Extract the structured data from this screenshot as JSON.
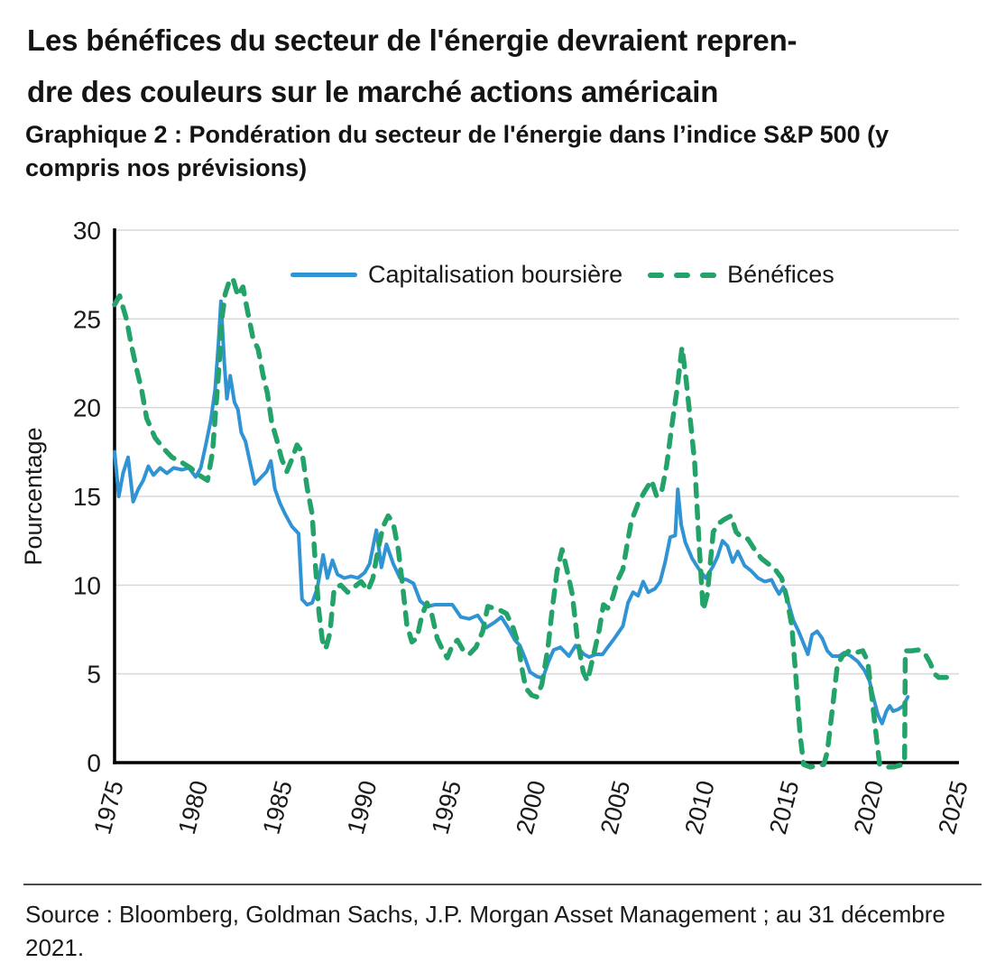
{
  "header": {
    "title_line1": "Les bénéfices du secteur de l'énergie devraient repren-",
    "title_line2": "dre des couleurs sur le marché actions américain",
    "subtitle": "Graphique 2 : Pondération du secteur de l'énergie dans l’indice S&P 500 (y compris nos prévisions)"
  },
  "footer": {
    "source": "Source : Bloomberg, Goldman Sachs, J.P. Morgan Asset Management ; au 31 décembre 2021."
  },
  "colors": {
    "market_cap_line": "#3093D3",
    "earnings_line": "#23A369",
    "gridline": "#D9D9D9",
    "axis": "#000000",
    "text": "#191919"
  },
  "chart_data": {
    "type": "line",
    "title": "Pondération du secteur de l'énergie dans l’indice S&P 500 (y compris nos prévisions)",
    "xlabel": "",
    "ylabel": "Pourcentage",
    "xlim": [
      1975,
      2025
    ],
    "ylim": [
      0,
      30
    ],
    "yticks": [
      0,
      5,
      10,
      15,
      20,
      25,
      30
    ],
    "xticks": [
      1975,
      1980,
      1985,
      1990,
      1995,
      2000,
      2005,
      2010,
      2015,
      2020,
      2025
    ],
    "grid": "horizontal",
    "legend_position": "top-center",
    "series": [
      {
        "name": "Capitalisation boursière",
        "style": "solid",
        "points": [
          [
            1975.0,
            17.5
          ],
          [
            1975.25,
            15.0
          ],
          [
            1975.5,
            16.3
          ],
          [
            1975.8,
            17.2
          ],
          [
            1976.1,
            14.7
          ],
          [
            1976.4,
            15.4
          ],
          [
            1976.7,
            15.9
          ],
          [
            1977.0,
            16.7
          ],
          [
            1977.3,
            16.2
          ],
          [
            1977.7,
            16.6
          ],
          [
            1978.1,
            16.3
          ],
          [
            1978.5,
            16.6
          ],
          [
            1979.0,
            16.5
          ],
          [
            1979.4,
            16.6
          ],
          [
            1979.8,
            16.1
          ],
          [
            1980.1,
            16.6
          ],
          [
            1980.4,
            17.9
          ],
          [
            1980.7,
            19.3
          ],
          [
            1980.95,
            21.0
          ],
          [
            1981.15,
            23.6
          ],
          [
            1981.3,
            26.0
          ],
          [
            1981.5,
            22.5
          ],
          [
            1981.65,
            20.5
          ],
          [
            1981.85,
            21.8
          ],
          [
            1982.1,
            20.3
          ],
          [
            1982.3,
            19.9
          ],
          [
            1982.5,
            18.6
          ],
          [
            1982.75,
            18.1
          ],
          [
            1983.0,
            17.0
          ],
          [
            1983.3,
            15.7
          ],
          [
            1983.7,
            16.1
          ],
          [
            1984.0,
            16.4
          ],
          [
            1984.25,
            17.0
          ],
          [
            1984.5,
            15.4
          ],
          [
            1984.8,
            14.6
          ],
          [
            1985.1,
            14.0
          ],
          [
            1985.5,
            13.3
          ],
          [
            1985.9,
            12.9
          ],
          [
            1986.1,
            9.2
          ],
          [
            1986.4,
            8.9
          ],
          [
            1986.7,
            9.0
          ],
          [
            1987.0,
            9.8
          ],
          [
            1987.35,
            11.7
          ],
          [
            1987.6,
            10.4
          ],
          [
            1987.9,
            11.4
          ],
          [
            1988.2,
            10.6
          ],
          [
            1988.6,
            10.4
          ],
          [
            1989.0,
            10.5
          ],
          [
            1989.4,
            10.4
          ],
          [
            1989.8,
            10.7
          ],
          [
            1990.1,
            11.2
          ],
          [
            1990.5,
            13.1
          ],
          [
            1990.8,
            11.0
          ],
          [
            1991.1,
            12.3
          ],
          [
            1991.5,
            11.2
          ],
          [
            1991.9,
            10.4
          ],
          [
            1992.3,
            10.3
          ],
          [
            1992.7,
            10.1
          ],
          [
            1993.1,
            9.1
          ],
          [
            1993.5,
            8.8
          ],
          [
            1994.0,
            8.9
          ],
          [
            1994.5,
            8.9
          ],
          [
            1995.0,
            8.9
          ],
          [
            1995.5,
            8.2
          ],
          [
            1996.0,
            8.1
          ],
          [
            1996.5,
            8.3
          ],
          [
            1997.0,
            7.6
          ],
          [
            1997.5,
            7.9
          ],
          [
            1997.9,
            8.2
          ],
          [
            1998.3,
            7.6
          ],
          [
            1998.7,
            6.9
          ],
          [
            1999.0,
            6.6
          ],
          [
            1999.3,
            5.9
          ],
          [
            1999.6,
            5.1
          ],
          [
            2000.0,
            4.85
          ],
          [
            2000.35,
            4.75
          ],
          [
            2000.7,
            5.7
          ],
          [
            2001.0,
            6.35
          ],
          [
            2001.4,
            6.5
          ],
          [
            2001.9,
            6.0
          ],
          [
            2002.3,
            6.6
          ],
          [
            2002.8,
            6.1
          ],
          [
            2003.1,
            5.95
          ],
          [
            2003.5,
            6.1
          ],
          [
            2003.9,
            6.1
          ],
          [
            2004.2,
            6.5
          ],
          [
            2004.6,
            7.0
          ],
          [
            2005.1,
            7.7
          ],
          [
            2005.4,
            9.0
          ],
          [
            2005.7,
            9.6
          ],
          [
            2006.0,
            9.4
          ],
          [
            2006.3,
            10.2
          ],
          [
            2006.6,
            9.6
          ],
          [
            2007.0,
            9.8
          ],
          [
            2007.3,
            10.2
          ],
          [
            2007.6,
            11.3
          ],
          [
            2007.9,
            12.7
          ],
          [
            2008.2,
            12.8
          ],
          [
            2008.35,
            15.4
          ],
          [
            2008.55,
            13.4
          ],
          [
            2008.8,
            12.4
          ],
          [
            2009.2,
            11.5
          ],
          [
            2009.6,
            10.9
          ],
          [
            2010.0,
            10.4
          ],
          [
            2010.4,
            11.0
          ],
          [
            2010.7,
            11.6
          ],
          [
            2011.0,
            12.5
          ],
          [
            2011.3,
            12.2
          ],
          [
            2011.6,
            11.3
          ],
          [
            2011.9,
            11.9
          ],
          [
            2012.3,
            11.1
          ],
          [
            2012.7,
            10.8
          ],
          [
            2013.1,
            10.4
          ],
          [
            2013.5,
            10.2
          ],
          [
            2013.9,
            10.3
          ],
          [
            2014.1,
            9.9
          ],
          [
            2014.35,
            9.5
          ],
          [
            2014.6,
            9.9
          ],
          [
            2014.9,
            9.0
          ],
          [
            2015.2,
            8.0
          ],
          [
            2015.5,
            7.4
          ],
          [
            2015.8,
            6.7
          ],
          [
            2016.05,
            6.1
          ],
          [
            2016.3,
            7.2
          ],
          [
            2016.6,
            7.4
          ],
          [
            2016.9,
            7.0
          ],
          [
            2017.2,
            6.3
          ],
          [
            2017.5,
            6.0
          ],
          [
            2017.9,
            6.0
          ],
          [
            2018.2,
            6.2
          ],
          [
            2018.6,
            6.0
          ],
          [
            2019.0,
            5.7
          ],
          [
            2019.4,
            5.2
          ],
          [
            2019.7,
            4.6
          ],
          [
            2019.95,
            3.6
          ],
          [
            2020.2,
            2.7
          ],
          [
            2020.45,
            2.2
          ],
          [
            2020.7,
            2.9
          ],
          [
            2020.9,
            3.2
          ],
          [
            2021.1,
            2.9
          ],
          [
            2021.4,
            3.0
          ],
          [
            2021.7,
            3.2
          ],
          [
            2021.97,
            3.7
          ]
        ]
      },
      {
        "name": "Bénéfices",
        "style": "dashed",
        "points": [
          [
            1975.0,
            25.8
          ],
          [
            1975.3,
            26.3
          ],
          [
            1975.7,
            25.0
          ],
          [
            1976.0,
            23.5
          ],
          [
            1976.3,
            22.2
          ],
          [
            1976.6,
            21.0
          ],
          [
            1976.9,
            19.4
          ],
          [
            1977.4,
            18.3
          ],
          [
            1977.9,
            17.7
          ],
          [
            1978.4,
            17.2
          ],
          [
            1979.0,
            16.9
          ],
          [
            1979.5,
            16.6
          ],
          [
            1980.0,
            16.2
          ],
          [
            1980.5,
            15.9
          ],
          [
            1980.8,
            17.5
          ],
          [
            1981.0,
            20.0
          ],
          [
            1981.2,
            22.5
          ],
          [
            1981.35,
            25.0
          ],
          [
            1981.55,
            26.4
          ],
          [
            1981.75,
            27.0
          ],
          [
            1982.0,
            27.3
          ],
          [
            1982.3,
            26.3
          ],
          [
            1982.6,
            26.8
          ],
          [
            1982.9,
            25.3
          ],
          [
            1983.2,
            23.9
          ],
          [
            1983.5,
            23.3
          ],
          [
            1983.8,
            21.8
          ],
          [
            1984.05,
            20.8
          ],
          [
            1984.3,
            19.2
          ],
          [
            1984.6,
            18.2
          ],
          [
            1984.9,
            17.1
          ],
          [
            1985.2,
            16.4
          ],
          [
            1985.5,
            17.1
          ],
          [
            1985.8,
            17.9
          ],
          [
            1986.1,
            17.5
          ],
          [
            1986.4,
            15.5
          ],
          [
            1986.7,
            14.0
          ],
          [
            1986.9,
            11.0
          ],
          [
            1987.1,
            8.5
          ],
          [
            1987.3,
            6.9
          ],
          [
            1987.5,
            6.4
          ],
          [
            1987.75,
            7.3
          ],
          [
            1988.0,
            9.8
          ],
          [
            1988.4,
            10.0
          ],
          [
            1988.8,
            9.6
          ],
          [
            1989.2,
            9.9
          ],
          [
            1989.6,
            10.2
          ],
          [
            1990.0,
            9.7
          ],
          [
            1990.3,
            10.4
          ],
          [
            1990.6,
            12.0
          ],
          [
            1990.9,
            13.3
          ],
          [
            1991.2,
            13.9
          ],
          [
            1991.5,
            13.5
          ],
          [
            1991.8,
            12.0
          ],
          [
            1992.05,
            10.0
          ],
          [
            1992.3,
            7.8
          ],
          [
            1992.6,
            6.8
          ],
          [
            1992.9,
            7.0
          ],
          [
            1993.2,
            8.3
          ],
          [
            1993.5,
            9.0
          ],
          [
            1993.8,
            8.3
          ],
          [
            1994.1,
            7.0
          ],
          [
            1994.4,
            6.4
          ],
          [
            1994.7,
            5.9
          ],
          [
            1995.0,
            6.6
          ],
          [
            1995.3,
            6.9
          ],
          [
            1995.6,
            6.4
          ],
          [
            1996.0,
            6.1
          ],
          [
            1996.4,
            6.5
          ],
          [
            1996.8,
            7.4
          ],
          [
            1997.1,
            8.8
          ],
          [
            1997.45,
            8.7
          ],
          [
            1997.8,
            8.6
          ],
          [
            1998.2,
            8.4
          ],
          [
            1998.6,
            7.6
          ],
          [
            1998.9,
            6.7
          ],
          [
            1999.1,
            5.4
          ],
          [
            1999.35,
            4.2
          ],
          [
            1999.7,
            3.8
          ],
          [
            2000.0,
            3.7
          ],
          [
            2000.3,
            4.4
          ],
          [
            2000.65,
            6.4
          ],
          [
            2000.9,
            8.5
          ],
          [
            2001.2,
            10.8
          ],
          [
            2001.5,
            12.0
          ],
          [
            2001.85,
            10.6
          ],
          [
            2002.1,
            9.5
          ],
          [
            2002.4,
            7.0
          ],
          [
            2002.75,
            5.1
          ],
          [
            2003.0,
            4.6
          ],
          [
            2003.4,
            6.2
          ],
          [
            2003.7,
            7.5
          ],
          [
            2003.95,
            8.9
          ],
          [
            2004.2,
            8.7
          ],
          [
            2004.5,
            9.3
          ],
          [
            2004.8,
            10.3
          ],
          [
            2005.1,
            10.9
          ],
          [
            2005.35,
            12.3
          ],
          [
            2005.6,
            13.6
          ],
          [
            2006.0,
            14.6
          ],
          [
            2006.4,
            15.3
          ],
          [
            2006.8,
            15.9
          ],
          [
            2007.1,
            15.0
          ],
          [
            2007.4,
            15.3
          ],
          [
            2007.7,
            16.8
          ],
          [
            2008.0,
            19.0
          ],
          [
            2008.3,
            21.0
          ],
          [
            2008.6,
            23.4
          ],
          [
            2008.85,
            21.5
          ],
          [
            2009.1,
            19.2
          ],
          [
            2009.35,
            16.9
          ],
          [
            2009.6,
            12.5
          ],
          [
            2009.85,
            8.6
          ],
          [
            2010.1,
            9.5
          ],
          [
            2010.45,
            13.0
          ],
          [
            2010.8,
            13.5
          ],
          [
            2011.1,
            13.7
          ],
          [
            2011.5,
            13.9
          ],
          [
            2011.8,
            13.0
          ],
          [
            2012.1,
            12.7
          ],
          [
            2012.5,
            12.6
          ],
          [
            2012.9,
            12.0
          ],
          [
            2013.3,
            11.5
          ],
          [
            2013.7,
            11.2
          ],
          [
            2014.1,
            10.9
          ],
          [
            2014.5,
            10.4
          ],
          [
            2014.8,
            9.3
          ],
          [
            2015.1,
            7.7
          ],
          [
            2015.35,
            4.7
          ],
          [
            2015.6,
            1.5
          ],
          [
            2015.8,
            -0.1
          ],
          [
            2016.2,
            -0.25
          ],
          [
            2016.6,
            -0.15
          ],
          [
            2017.0,
            -0.1
          ],
          [
            2017.2,
            0.6
          ],
          [
            2017.5,
            3.0
          ],
          [
            2017.8,
            5.5
          ],
          [
            2018.1,
            6.0
          ],
          [
            2018.5,
            6.3
          ],
          [
            2018.9,
            6.2
          ],
          [
            2019.3,
            6.3
          ],
          [
            2019.6,
            5.7
          ],
          [
            2019.9,
            3.2
          ],
          [
            2020.1,
            1.5
          ],
          [
            2020.3,
            -0.1
          ],
          [
            2020.7,
            -0.25
          ],
          [
            2021.1,
            -0.25
          ],
          [
            2021.5,
            -0.15
          ],
          [
            2021.78,
            0.0
          ],
          [
            2021.82,
            6.3
          ],
          [
            2022.2,
            6.3
          ],
          [
            2022.6,
            6.35
          ],
          [
            2023.0,
            6.1
          ],
          [
            2023.3,
            5.6
          ],
          [
            2023.55,
            5.0
          ],
          [
            2023.8,
            4.8
          ],
          [
            2024.3,
            4.8
          ],
          [
            2024.7,
            4.6
          ]
        ]
      }
    ]
  }
}
